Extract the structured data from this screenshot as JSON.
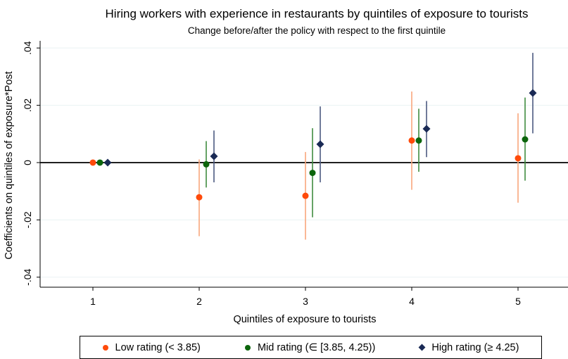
{
  "chart_data": {
    "type": "scatter",
    "title": "Hiring workers with experience in restaurants by quintiles of exposure to tourists",
    "subtitle": "Change before/after the policy with respect to the first quintile",
    "xlabel": "Quintiles of exposure to tourists",
    "ylabel": "Coefficients on quintiles of exposure*Post",
    "categories": [
      "1",
      "2",
      "3",
      "4",
      "5"
    ],
    "y_ticks": [
      "-.04",
      "-.02",
      "0",
      ".02",
      ".04"
    ],
    "y_tick_values": [
      -0.04,
      -0.02,
      0,
      0.02,
      0.04
    ],
    "ylim": [
      -0.0435,
      0.0425
    ],
    "grid": true,
    "legend_position": "bottom",
    "series": [
      {
        "name": "Low rating (< 3.85)",
        "marker": "circle",
        "color": "#ff4a0a",
        "ci_color": "#f8a77c",
        "values": [
          0,
          -0.0121,
          -0.0116,
          0.0077,
          0.0015
        ],
        "ci_low": [
          0,
          -0.0257,
          -0.0269,
          -0.0095,
          -0.014
        ],
        "ci_high": [
          0,
          0.0011,
          0.0037,
          0.0248,
          0.0172
        ]
      },
      {
        "name": "Mid rating (∈ [3.85, 4.25))",
        "marker": "circle",
        "color": "#0c650c",
        "ci_color": "#3f8c3f",
        "values": [
          0,
          -0.0006,
          -0.0036,
          0.0077,
          0.0081
        ],
        "ci_low": [
          0,
          -0.0087,
          -0.0191,
          -0.0032,
          -0.0063
        ],
        "ci_high": [
          0,
          0.0075,
          0.012,
          0.0188,
          0.0227
        ]
      },
      {
        "name": "High rating (≥ 4.25)",
        "marker": "diamond",
        "color": "#1a2a55",
        "ci_color": "#4c5a80",
        "values": [
          0,
          0.0022,
          0.0064,
          0.0118,
          0.0243
        ],
        "ci_low": [
          0,
          -0.0069,
          -0.0069,
          0.0019,
          0.0102
        ],
        "ci_high": [
          0,
          0.0112,
          0.0196,
          0.0215,
          0.0383
        ]
      }
    ]
  }
}
